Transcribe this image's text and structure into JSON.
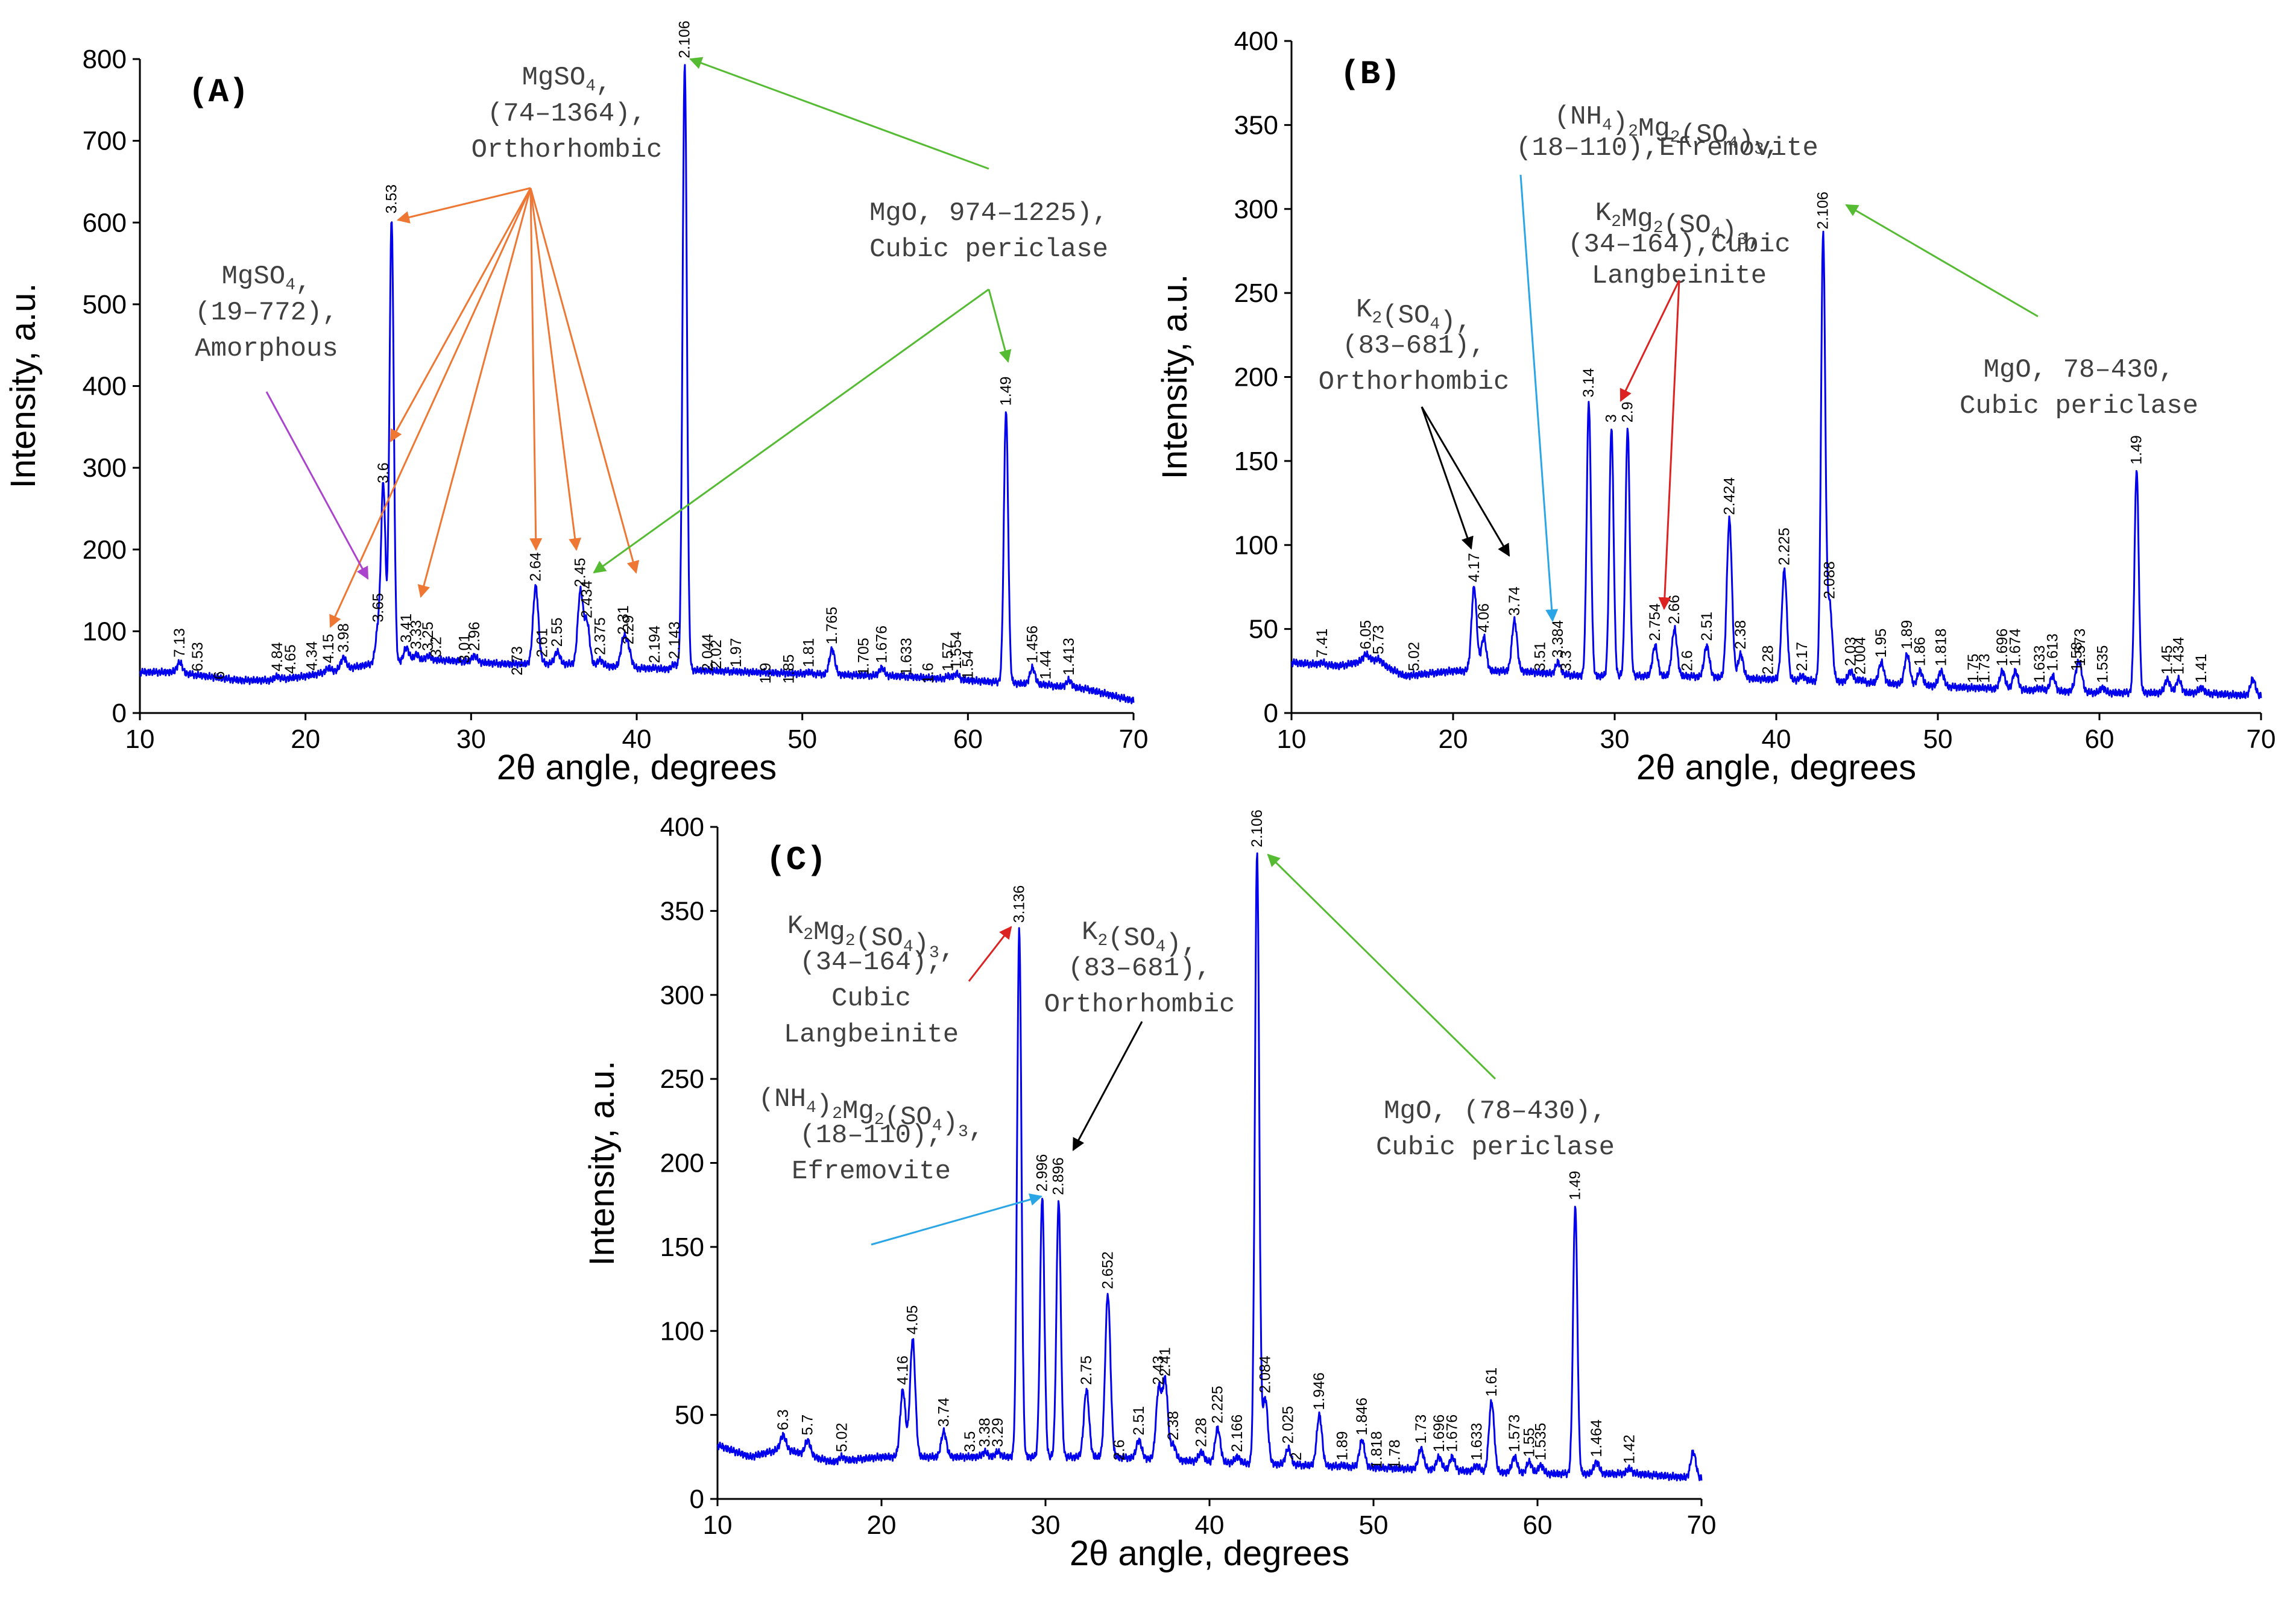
{
  "colors": {
    "series": "#0000ee",
    "orange": "#ee7733",
    "green": "#55bb33",
    "purple": "#aa44cc",
    "black": "#000000",
    "red": "#dd2222",
    "blue": "#2aa6e6"
  },
  "chart_data": [
    {
      "type": "line",
      "panel": "(A)",
      "xlabel": "2θ angle, degrees",
      "ylabel": "Intensity, a.u.",
      "xlim": [
        10,
        70
      ],
      "ylim": [
        0,
        800
      ],
      "xticks": [
        10,
        20,
        30,
        40,
        50,
        60,
        70
      ],
      "yticks": [
        0,
        100,
        200,
        300,
        400,
        500,
        600,
        700,
        800
      ],
      "baseline": [
        [
          10,
          50
        ],
        [
          12,
          50
        ],
        [
          14,
          45
        ],
        [
          16,
          40
        ],
        [
          18,
          40
        ],
        [
          20,
          45
        ],
        [
          24,
          60
        ],
        [
          28,
          65
        ],
        [
          32,
          60
        ],
        [
          36,
          60
        ],
        [
          40,
          55
        ],
        [
          44,
          52
        ],
        [
          50,
          48
        ],
        [
          56,
          45
        ],
        [
          60,
          40
        ],
        [
          64,
          35
        ],
        [
          67,
          30
        ],
        [
          70,
          15
        ]
      ],
      "peaks": [
        {
          "x": 12.4,
          "y": 62,
          "label": "7.13"
        },
        {
          "x": 13.5,
          "y": 45,
          "label": "6.53"
        },
        {
          "x": 14.8,
          "y": 35,
          "label": "6"
        },
        {
          "x": 18.3,
          "y": 45,
          "label": "4.84"
        },
        {
          "x": 19.1,
          "y": 42,
          "label": "4.65"
        },
        {
          "x": 20.4,
          "y": 46,
          "label": "4.34"
        },
        {
          "x": 21.4,
          "y": 55,
          "label": "4.15"
        },
        {
          "x": 22.3,
          "y": 68,
          "label": "3.98"
        },
        {
          "x": 24.4,
          "y": 105,
          "label": "3.65"
        },
        {
          "x": 24.7,
          "y": 275,
          "label": "3.6"
        },
        {
          "x": 25.2,
          "y": 605,
          "label": "3.53"
        },
        {
          "x": 26.1,
          "y": 80,
          "label": "3.41"
        },
        {
          "x": 26.7,
          "y": 72,
          "label": "3.33"
        },
        {
          "x": 27.4,
          "y": 70,
          "label": "3.25"
        },
        {
          "x": 27.9,
          "y": 62,
          "label": "3.2"
        },
        {
          "x": 29.6,
          "y": 55,
          "label": "3.01"
        },
        {
          "x": 30.2,
          "y": 70,
          "label": "2.96"
        },
        {
          "x": 32.8,
          "y": 40,
          "label": "2.73"
        },
        {
          "x": 33.9,
          "y": 155,
          "label": "2.64"
        },
        {
          "x": 34.3,
          "y": 62,
          "label": "2.61"
        },
        {
          "x": 35.2,
          "y": 75,
          "label": "2.55"
        },
        {
          "x": 36.6,
          "y": 148,
          "label": "2.45"
        },
        {
          "x": 37.0,
          "y": 110,
          "label": "2.434"
        },
        {
          "x": 37.8,
          "y": 65,
          "label": "2.375"
        },
        {
          "x": 39.2,
          "y": 90,
          "label": "2.31"
        },
        {
          "x": 39.5,
          "y": 78,
          "label": "2.29"
        },
        {
          "x": 41.1,
          "y": 55,
          "label": "2.194"
        },
        {
          "x": 42.3,
          "y": 60,
          "label": "2.143"
        },
        {
          "x": 42.9,
          "y": 795,
          "label": "2.106"
        },
        {
          "x": 44.3,
          "y": 45,
          "label": "2.044"
        },
        {
          "x": 44.8,
          "y": 48,
          "label": "2.02"
        },
        {
          "x": 46.0,
          "y": 50,
          "label": "1.97"
        },
        {
          "x": 47.8,
          "y": 30,
          "label": "1.9"
        },
        {
          "x": 49.2,
          "y": 30,
          "label": "1.85"
        },
        {
          "x": 50.4,
          "y": 50,
          "label": "1.81"
        },
        {
          "x": 51.8,
          "y": 78,
          "label": "1.765"
        },
        {
          "x": 53.7,
          "y": 40,
          "label": "1.705"
        },
        {
          "x": 54.8,
          "y": 55,
          "label": "1.676"
        },
        {
          "x": 56.3,
          "y": 40,
          "label": "1.633"
        },
        {
          "x": 57.6,
          "y": 30,
          "label": "1.6"
        },
        {
          "x": 58.8,
          "y": 45,
          "label": "1.57"
        },
        {
          "x": 59.3,
          "y": 48,
          "label": "1.554"
        },
        {
          "x": 60.0,
          "y": 35,
          "label": "1.54"
        },
        {
          "x": 62.3,
          "y": 370,
          "label": "1.49"
        },
        {
          "x": 63.9,
          "y": 55,
          "label": "1.456"
        },
        {
          "x": 64.7,
          "y": 35,
          "label": "1.44"
        },
        {
          "x": 66.1,
          "y": 40,
          "label": "1.413"
        }
      ],
      "annotations": [
        {
          "text_lines": [
            "MgSO4,",
            "(74–1364),",
            "Orthorhombic"
          ],
          "color": "orange"
        },
        {
          "text_lines": [
            "MgSO4,",
            "(19–772),",
            "Amorphous"
          ],
          "color": "purple"
        },
        {
          "text_lines": [
            "MgO, 974–1225),",
            "Cubic periclase"
          ],
          "color": "green"
        }
      ]
    },
    {
      "type": "line",
      "panel": "(B)",
      "xlabel": "2θ angle, degrees",
      "ylabel": "Intensity, a.u.",
      "xlim": [
        10,
        70
      ],
      "ylim": [
        0,
        400
      ],
      "xticks": [
        10,
        20,
        30,
        40,
        50,
        60,
        70
      ],
      "yticks": [
        0,
        50,
        100,
        150,
        200,
        250,
        300,
        350,
        400
      ],
      "baseline": [
        [
          10,
          30
        ],
        [
          13,
          28
        ],
        [
          15,
          32
        ],
        [
          17,
          22
        ],
        [
          20,
          25
        ],
        [
          24,
          25
        ],
        [
          28,
          22
        ],
        [
          34,
          22
        ],
        [
          40,
          20
        ],
        [
          46,
          18
        ],
        [
          52,
          15
        ],
        [
          60,
          12
        ],
        [
          66,
          12
        ],
        [
          70,
          10
        ]
      ],
      "peaks": [
        {
          "x": 11.9,
          "y": 30,
          "label": "7.41"
        },
        {
          "x": 14.6,
          "y": 35,
          "label": "6.05"
        },
        {
          "x": 15.4,
          "y": 32,
          "label": "5.73"
        },
        {
          "x": 17.6,
          "y": 22,
          "label": "5.02"
        },
        {
          "x": 21.3,
          "y": 75,
          "label": "4.17"
        },
        {
          "x": 21.9,
          "y": 45,
          "label": "4.06"
        },
        {
          "x": 23.8,
          "y": 55,
          "label": "3.74"
        },
        {
          "x": 25.4,
          "y": 22,
          "label": "3.51"
        },
        {
          "x": 26.5,
          "y": 30,
          "label": "3.384"
        },
        {
          "x": 27.0,
          "y": 22,
          "label": "3.3"
        },
        {
          "x": 28.4,
          "y": 185,
          "label": "3.14"
        },
        {
          "x": 29.8,
          "y": 170,
          "label": "3"
        },
        {
          "x": 30.8,
          "y": 170,
          "label": "2.9"
        },
        {
          "x": 32.5,
          "y": 40,
          "label": "2.754"
        },
        {
          "x": 33.7,
          "y": 50,
          "label": "2.66"
        },
        {
          "x": 34.5,
          "y": 22,
          "label": "2.6"
        },
        {
          "x": 35.7,
          "y": 40,
          "label": "2.51"
        },
        {
          "x": 37.1,
          "y": 115,
          "label": "2.424"
        },
        {
          "x": 37.8,
          "y": 35,
          "label": "2.38"
        },
        {
          "x": 39.5,
          "y": 20,
          "label": "2.28"
        },
        {
          "x": 40.5,
          "y": 85,
          "label": "2.225"
        },
        {
          "x": 41.6,
          "y": 22,
          "label": "2.17"
        },
        {
          "x": 42.9,
          "y": 285,
          "label": "2.106"
        },
        {
          "x": 43.3,
          "y": 65,
          "label": "2.088"
        },
        {
          "x": 44.6,
          "y": 25,
          "label": "2.03"
        },
        {
          "x": 45.2,
          "y": 20,
          "label": "2.004"
        },
        {
          "x": 46.5,
          "y": 30,
          "label": "1.95"
        },
        {
          "x": 48.1,
          "y": 35,
          "label": "1.89"
        },
        {
          "x": 48.9,
          "y": 25,
          "label": "1.86"
        },
        {
          "x": 50.2,
          "y": 25,
          "label": "1.818"
        },
        {
          "x": 52.2,
          "y": 15,
          "label": "1.75"
        },
        {
          "x": 52.9,
          "y": 15,
          "label": "1.73"
        },
        {
          "x": 54.0,
          "y": 25,
          "label": "1.696"
        },
        {
          "x": 54.8,
          "y": 25,
          "label": "1.674"
        },
        {
          "x": 56.3,
          "y": 15,
          "label": "1.633"
        },
        {
          "x": 57.1,
          "y": 22,
          "label": "1.613"
        },
        {
          "x": 58.6,
          "y": 22,
          "label": "1.58"
        },
        {
          "x": 58.8,
          "y": 25,
          "label": "1.573"
        },
        {
          "x": 60.2,
          "y": 15,
          "label": "1.535"
        },
        {
          "x": 62.3,
          "y": 145,
          "label": "1.49"
        },
        {
          "x": 64.2,
          "y": 20,
          "label": "1.45"
        },
        {
          "x": 64.9,
          "y": 20,
          "label": "1.434"
        },
        {
          "x": 66.3,
          "y": 15,
          "label": "1.41"
        },
        {
          "x": 69.5,
          "y": 20,
          "label": ""
        }
      ],
      "annotations": [
        {
          "text_lines": [
            "(NH4)2Mg2(SO4)3,",
            "(18–110),Efremovite"
          ],
          "color": "blue"
        },
        {
          "text_lines": [
            "K2Mg2(SO4)3,",
            "(34–164),Cubic",
            "Langbeinite"
          ],
          "color": "red"
        },
        {
          "text_lines": [
            "K2(SO4),",
            "(83–681),",
            "Orthorhombic"
          ],
          "color": "black"
        },
        {
          "text_lines": [
            "MgO, 78–430,",
            "Cubic periclase"
          ],
          "color": "green"
        }
      ]
    },
    {
      "type": "line",
      "panel": "(C)",
      "xlabel": "2θ angle, degrees",
      "ylabel": "Intensity, a.u.",
      "xlim": [
        10,
        70
      ],
      "ylim": [
        0,
        400
      ],
      "xticks": [
        10,
        20,
        30,
        40,
        50,
        60,
        70
      ],
      "yticks": [
        0,
        50,
        100,
        150,
        200,
        250,
        300,
        350,
        400
      ],
      "baseline": [
        [
          10,
          32
        ],
        [
          12,
          25
        ],
        [
          14,
          30
        ],
        [
          17,
          22
        ],
        [
          20,
          25
        ],
        [
          24,
          25
        ],
        [
          28,
          25
        ],
        [
          34,
          25
        ],
        [
          40,
          22
        ],
        [
          46,
          20
        ],
        [
          52,
          18
        ],
        [
          60,
          15
        ],
        [
          66,
          15
        ],
        [
          70,
          12
        ]
      ],
      "peaks": [
        {
          "x": 14.0,
          "y": 38,
          "label": "6.3"
        },
        {
          "x": 15.5,
          "y": 35,
          "label": "5.7"
        },
        {
          "x": 17.6,
          "y": 25,
          "label": "5.02"
        },
        {
          "x": 21.3,
          "y": 65,
          "label": "4.16"
        },
        {
          "x": 21.9,
          "y": 95,
          "label": "4.05"
        },
        {
          "x": 23.8,
          "y": 40,
          "label": "3.74"
        },
        {
          "x": 25.4,
          "y": 25,
          "label": "3.5"
        },
        {
          "x": 26.3,
          "y": 28,
          "label": "3.38"
        },
        {
          "x": 27.1,
          "y": 28,
          "label": "3.29"
        },
        {
          "x": 28.4,
          "y": 340,
          "label": "3.136"
        },
        {
          "x": 29.8,
          "y": 180,
          "label": "2.996"
        },
        {
          "x": 30.8,
          "y": 178,
          "label": "2.896"
        },
        {
          "x": 32.5,
          "y": 65,
          "label": "2.75"
        },
        {
          "x": 33.8,
          "y": 122,
          "label": "2.652"
        },
        {
          "x": 34.5,
          "y": 20,
          "label": "2.6"
        },
        {
          "x": 35.7,
          "y": 35,
          "label": "2.51"
        },
        {
          "x": 36.9,
          "y": 65,
          "label": "2.43"
        },
        {
          "x": 37.3,
          "y": 70,
          "label": "2.41"
        },
        {
          "x": 37.8,
          "y": 32,
          "label": "2.38"
        },
        {
          "x": 39.5,
          "y": 28,
          "label": "2.28"
        },
        {
          "x": 40.5,
          "y": 42,
          "label": "2.225"
        },
        {
          "x": 41.7,
          "y": 25,
          "label": "2.166"
        },
        {
          "x": 42.9,
          "y": 385,
          "label": "2.106"
        },
        {
          "x": 43.4,
          "y": 60,
          "label": "2.084"
        },
        {
          "x": 44.8,
          "y": 30,
          "label": "2.025"
        },
        {
          "x": 45.3,
          "y": 20,
          "label": "2"
        },
        {
          "x": 46.7,
          "y": 50,
          "label": "1.946"
        },
        {
          "x": 48.1,
          "y": 20,
          "label": "1.89"
        },
        {
          "x": 49.3,
          "y": 35,
          "label": "1.846"
        },
        {
          "x": 50.2,
          "y": 15,
          "label": "1.818"
        },
        {
          "x": 51.3,
          "y": 15,
          "label": "1.78"
        },
        {
          "x": 52.9,
          "y": 30,
          "label": "1.73"
        },
        {
          "x": 54.0,
          "y": 25,
          "label": "1.696"
        },
        {
          "x": 54.8,
          "y": 25,
          "label": "1.676"
        },
        {
          "x": 56.3,
          "y": 20,
          "label": "1.633"
        },
        {
          "x": 57.2,
          "y": 58,
          "label": "1.61"
        },
        {
          "x": 58.6,
          "y": 25,
          "label": "1.573"
        },
        {
          "x": 59.5,
          "y": 22,
          "label": "1.55"
        },
        {
          "x": 60.2,
          "y": 20,
          "label": "1.535"
        },
        {
          "x": 62.3,
          "y": 175,
          "label": "1.49"
        },
        {
          "x": 63.6,
          "y": 22,
          "label": "1.464"
        },
        {
          "x": 65.6,
          "y": 18,
          "label": "1.42"
        },
        {
          "x": 69.5,
          "y": 28,
          "label": ""
        }
      ],
      "annotations": [
        {
          "text_lines": [
            "K2Mg2(SO4)3,",
            "(34–164),",
            "Cubic",
            "Langbeinite"
          ],
          "color": "red"
        },
        {
          "text_lines": [
            "K2(SO4),",
            "(83–681),",
            "Orthorhombic"
          ],
          "color": "black"
        },
        {
          "text_lines": [
            "(NH4)2Mg2(SO4)3,",
            "(18–110),",
            "Efremovite"
          ],
          "color": "blue"
        },
        {
          "text_lines": [
            "MgO, (78–430),",
            "Cubic periclase"
          ],
          "color": "green"
        }
      ]
    }
  ]
}
